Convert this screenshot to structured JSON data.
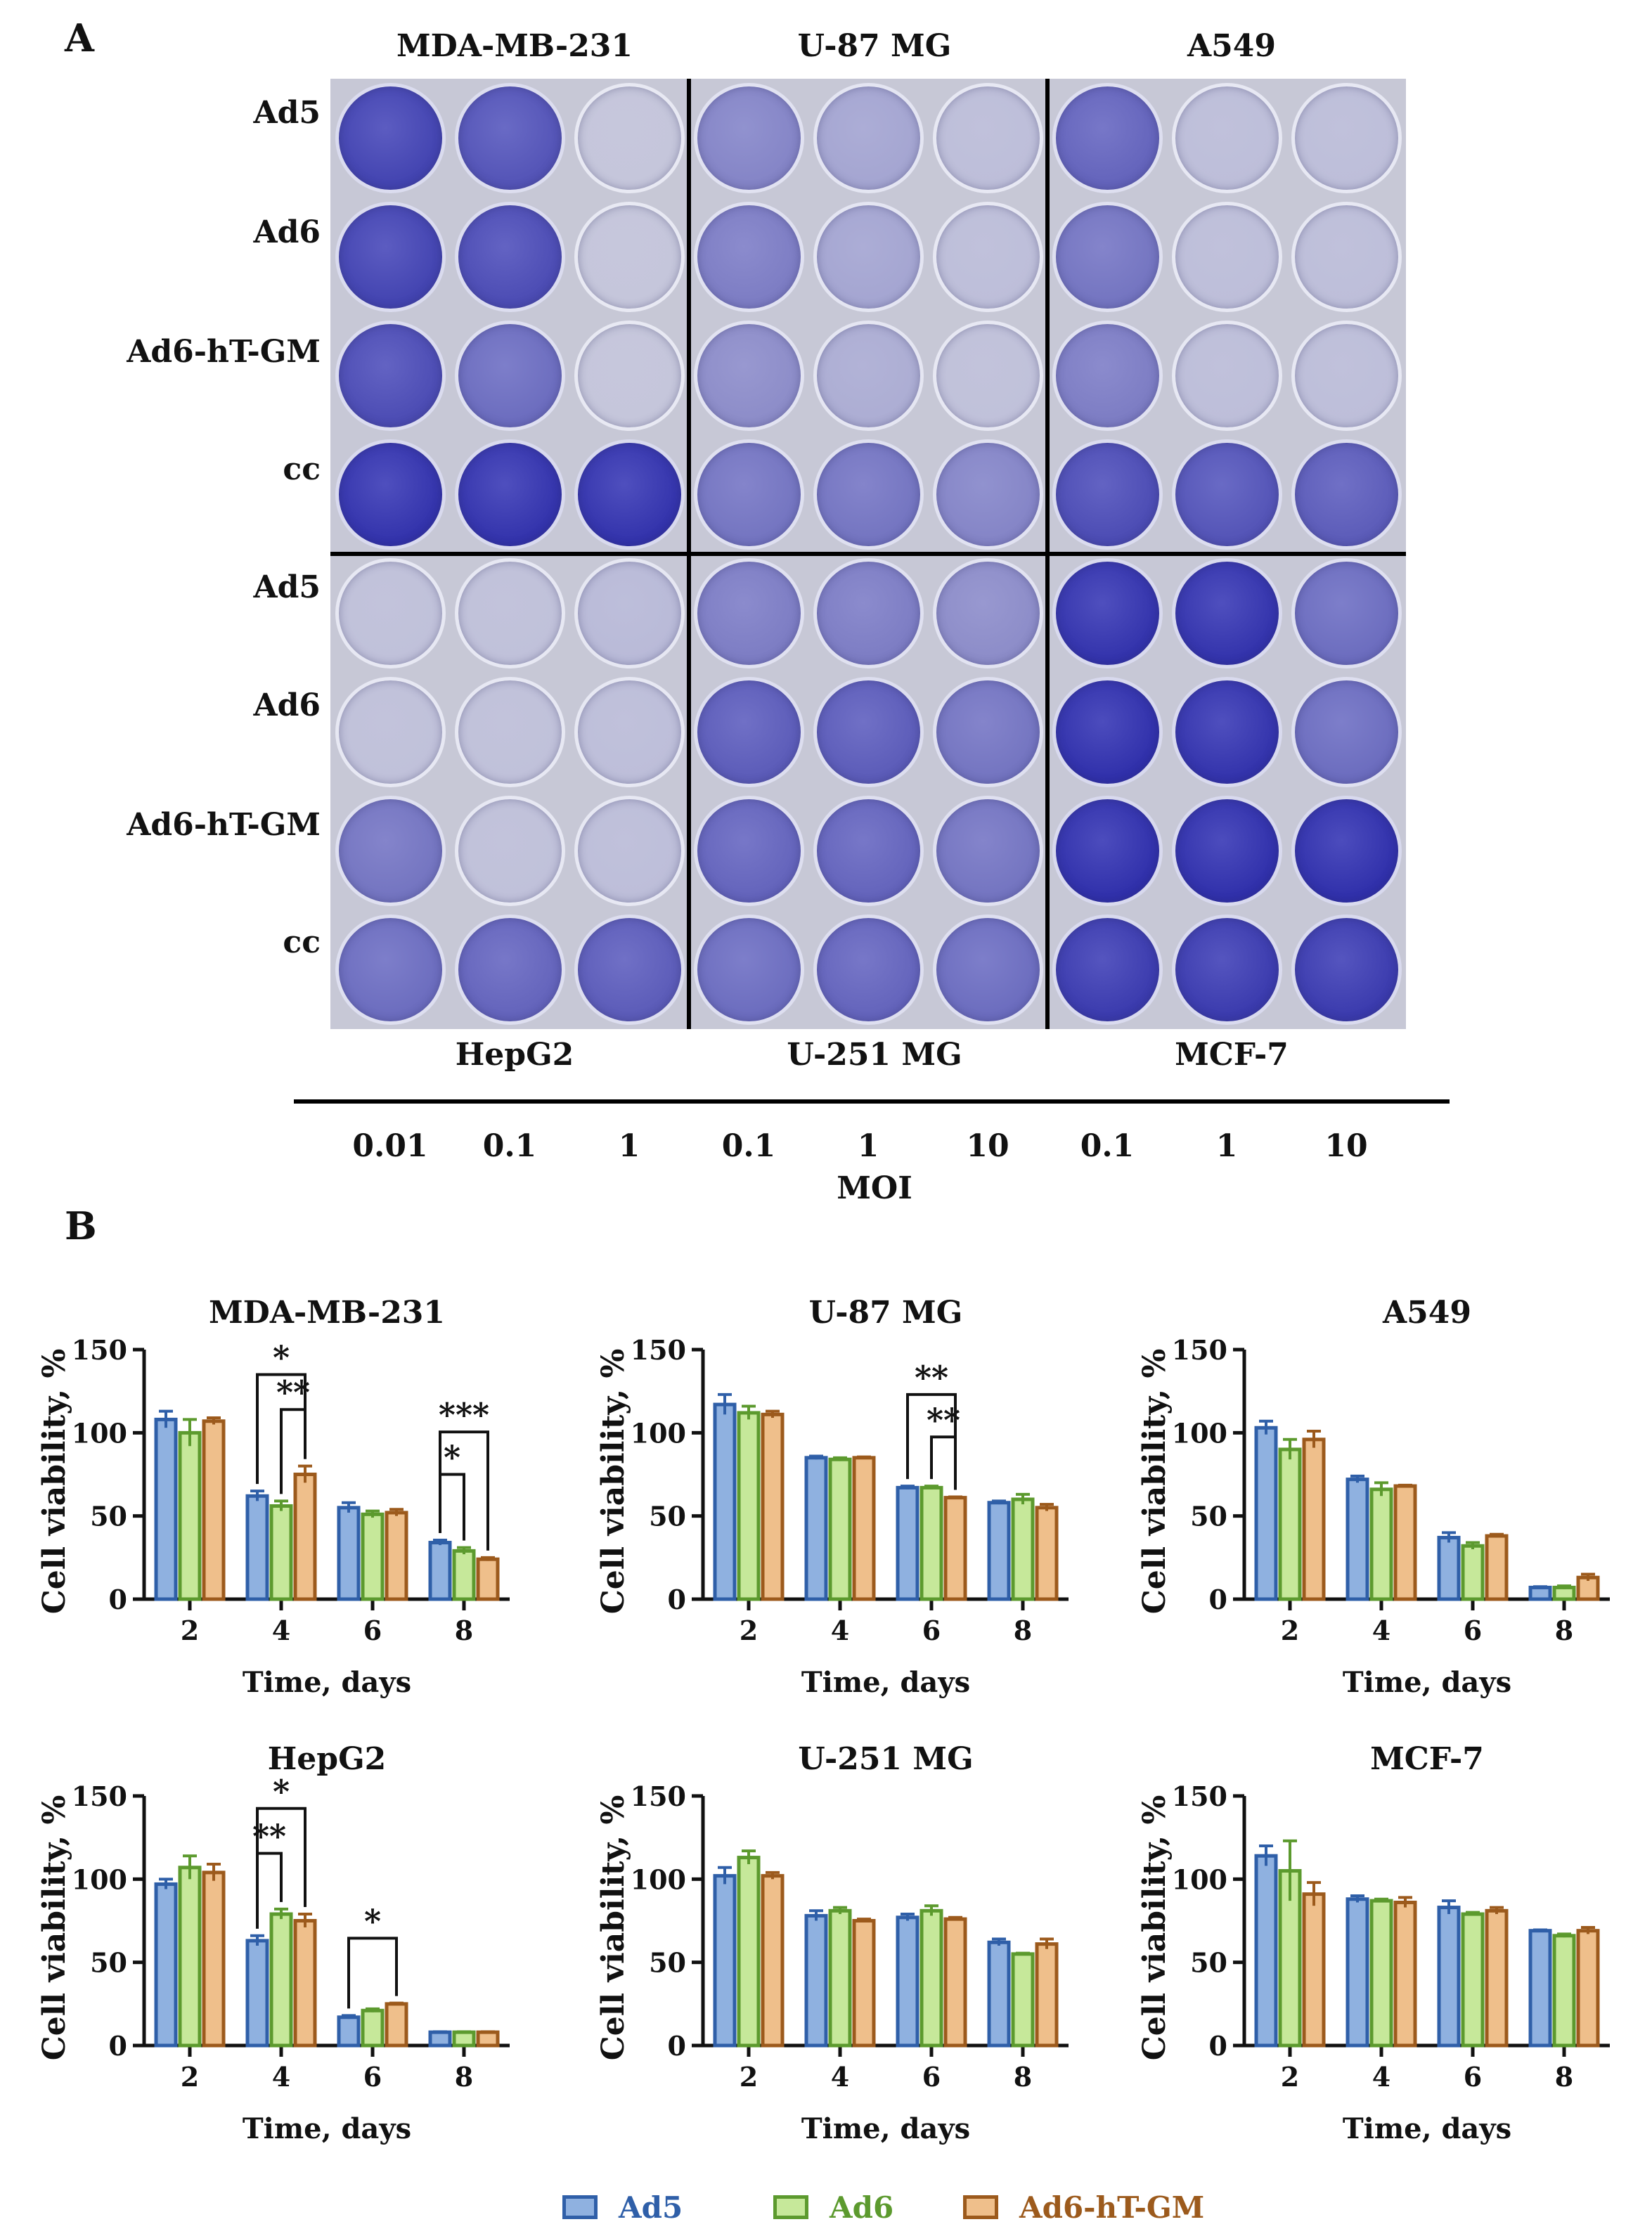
{
  "panel_a": {
    "letter": "A",
    "top_cell_lines": [
      "MDA-MB-231",
      "U-87 MG",
      "A549"
    ],
    "bottom_cell_lines": [
      "HepG2",
      "U-251 MG",
      "MCF-7"
    ],
    "row_labels": [
      "Ad5",
      "Ad6",
      "Ad6-hT-GM",
      "cc",
      "Ad5",
      "Ad6",
      "Ad6-hT-GM",
      "cc"
    ],
    "moi_ticks": [
      "0.01",
      "0.1",
      "1",
      "0.1",
      "1",
      "10",
      "0.1",
      "1",
      "10"
    ],
    "moi_axis_label": "MOI",
    "colors": {
      "stain_dark": "#2a2aa8",
      "stain_light": "#c9cadb",
      "stain_medium": "#6f6fc0"
    },
    "well_stain": [
      [
        0.85,
        0.75,
        0.05,
        0.45,
        0.25,
        0.1,
        0.65,
        0.1,
        0.1
      ],
      [
        0.85,
        0.8,
        0.05,
        0.5,
        0.25,
        0.1,
        0.55,
        0.1,
        0.1
      ],
      [
        0.8,
        0.6,
        0.05,
        0.4,
        0.2,
        0.08,
        0.5,
        0.1,
        0.1
      ],
      [
        0.95,
        0.95,
        0.95,
        0.55,
        0.55,
        0.45,
        0.8,
        0.75,
        0.7
      ],
      [
        0.08,
        0.08,
        0.12,
        0.5,
        0.5,
        0.4,
        0.95,
        0.95,
        0.6
      ],
      [
        0.08,
        0.08,
        0.1,
        0.7,
        0.7,
        0.55,
        0.97,
        0.95,
        0.6
      ],
      [
        0.55,
        0.08,
        0.1,
        0.65,
        0.65,
        0.55,
        0.97,
        0.97,
        0.97
      ],
      [
        0.6,
        0.65,
        0.7,
        0.6,
        0.65,
        0.6,
        0.9,
        0.9,
        0.9
      ]
    ]
  },
  "panel_b": {
    "letter": "B",
    "legend": [
      {
        "name": "Ad5",
        "fill": "#8fb1e0",
        "stroke": "#2f5fa8"
      },
      {
        "name": "Ad6",
        "fill": "#c6e89a",
        "stroke": "#5c9a2e"
      },
      {
        "name": "Ad6-hT-GM",
        "fill": "#efbf8b",
        "stroke": "#9c5a1c"
      }
    ]
  },
  "chart_data": [
    {
      "type": "bar",
      "title": "MDA-MB-231",
      "xlabel": "Time, days",
      "ylabel": "Cell viability, %",
      "categories": [
        "2",
        "4",
        "6",
        "8"
      ],
      "ylim": [
        0,
        150
      ],
      "yticks": [
        "0",
        "50",
        "100",
        "150"
      ],
      "series": [
        {
          "name": "Ad5",
          "values": [
            108,
            62,
            55,
            34
          ],
          "errors": [
            5,
            3,
            3,
            1.5
          ]
        },
        {
          "name": "Ad6",
          "values": [
            100,
            56,
            51,
            29
          ],
          "errors": [
            8,
            3,
            2,
            2
          ]
        },
        {
          "name": "Ad6-hT-GM",
          "values": [
            107,
            75,
            52,
            24
          ],
          "errors": [
            2,
            5,
            2,
            1
          ]
        }
      ],
      "annotations": [
        {
          "label": "*",
          "group": 1,
          "from": 0,
          "to": 2,
          "level": 0.9
        },
        {
          "label": "**",
          "group": 1,
          "from": 1,
          "to": 2,
          "level": 0.76
        },
        {
          "label": "***",
          "group": 3,
          "from": 0,
          "to": 2,
          "level": 0.67
        },
        {
          "label": "*",
          "group": 3,
          "from": 0,
          "to": 1,
          "level": 0.5
        }
      ]
    },
    {
      "type": "bar",
      "title": "U-87 MG",
      "xlabel": "Time, days",
      "ylabel": "Cell viability, %",
      "categories": [
        "2",
        "4",
        "6",
        "8"
      ],
      "ylim": [
        0,
        150
      ],
      "yticks": [
        "0",
        "50",
        "100",
        "150"
      ],
      "series": [
        {
          "name": "Ad5",
          "values": [
            117,
            85,
            67,
            58
          ],
          "errors": [
            6,
            1,
            1,
            1
          ]
        },
        {
          "name": "Ad6",
          "values": [
            112,
            84,
            67,
            60
          ],
          "errors": [
            4,
            1,
            1,
            3
          ]
        },
        {
          "name": "Ad6-hT-GM",
          "values": [
            111,
            85,
            61,
            55
          ],
          "errors": [
            2,
            0.5,
            0.5,
            2
          ]
        }
      ],
      "annotations": [
        {
          "label": "**",
          "group": 2,
          "from": 0,
          "to": 2,
          "level": 0.82
        },
        {
          "label": "**",
          "group": 2,
          "from": 1,
          "to": 2,
          "level": 0.65
        }
      ]
    },
    {
      "type": "bar",
      "title": "A549",
      "xlabel": "Time, days",
      "ylabel": "Cell viability, %",
      "categories": [
        "2",
        "4",
        "6",
        "8"
      ],
      "ylim": [
        0,
        150
      ],
      "yticks": [
        "0",
        "50",
        "100",
        "150"
      ],
      "series": [
        {
          "name": "Ad5",
          "values": [
            103,
            72,
            37,
            7
          ],
          "errors": [
            4,
            2,
            3,
            0.5
          ]
        },
        {
          "name": "Ad6",
          "values": [
            90,
            66,
            32,
            7
          ],
          "errors": [
            6,
            4,
            2,
            1
          ]
        },
        {
          "name": "Ad6-hT-GM",
          "values": [
            96,
            68,
            38,
            13
          ],
          "errors": [
            5,
            0.5,
            1,
            2
          ]
        }
      ],
      "annotations": []
    },
    {
      "type": "bar",
      "title": "HepG2",
      "xlabel": "Time, days",
      "ylabel": "Cell viability, %",
      "categories": [
        "2",
        "4",
        "6",
        "8"
      ],
      "ylim": [
        0,
        150
      ],
      "yticks": [
        "0",
        "50",
        "100",
        "150"
      ],
      "series": [
        {
          "name": "Ad5",
          "values": [
            97,
            63,
            17,
            8
          ],
          "errors": [
            3,
            3,
            1,
            0.3
          ]
        },
        {
          "name": "Ad6",
          "values": [
            107,
            79,
            21,
            8
          ],
          "errors": [
            7,
            3,
            1,
            0.3
          ]
        },
        {
          "name": "Ad6-hT-GM",
          "values": [
            104,
            75,
            25,
            8
          ],
          "errors": [
            5,
            4,
            0.5,
            0.3
          ]
        }
      ],
      "annotations": [
        {
          "label": "*",
          "group": 1,
          "from": 0,
          "to": 2,
          "level": 0.95
        },
        {
          "label": "**",
          "group": 1,
          "from": 0,
          "to": 1,
          "level": 0.77
        },
        {
          "label": "*",
          "group": 2,
          "from": 0,
          "to": 2,
          "level": 0.43
        }
      ]
    },
    {
      "type": "bar",
      "title": "U-251 MG",
      "xlabel": "Time, days",
      "ylabel": "Cell viability, %",
      "categories": [
        "2",
        "4",
        "6",
        "8"
      ],
      "ylim": [
        0,
        150
      ],
      "yticks": [
        "0",
        "50",
        "100",
        "150"
      ],
      "series": [
        {
          "name": "Ad5",
          "values": [
            102,
            78,
            77,
            62
          ],
          "errors": [
            5,
            3,
            2,
            2
          ]
        },
        {
          "name": "Ad6",
          "values": [
            113,
            81,
            81,
            55
          ],
          "errors": [
            4,
            2,
            3,
            0.5
          ]
        },
        {
          "name": "Ad6-hT-GM",
          "values": [
            102,
            75,
            76,
            61
          ],
          "errors": [
            2,
            1,
            1,
            3
          ]
        }
      ],
      "annotations": []
    },
    {
      "type": "bar",
      "title": "MCF-7",
      "xlabel": "Time, days",
      "ylabel": "Cell viability, %",
      "categories": [
        "2",
        "4",
        "6",
        "8"
      ],
      "ylim": [
        0,
        150
      ],
      "yticks": [
        "0",
        "50",
        "100",
        "150"
      ],
      "series": [
        {
          "name": "Ad5",
          "values": [
            114,
            88,
            83,
            69
          ],
          "errors": [
            6,
            2,
            4,
            0.5
          ]
        },
        {
          "name": "Ad6",
          "values": [
            105,
            87,
            79,
            66
          ],
          "errors": [
            18,
            1,
            1,
            1
          ]
        },
        {
          "name": "Ad6-hT-GM",
          "values": [
            91,
            86,
            81,
            69
          ],
          "errors": [
            7,
            3,
            2,
            2
          ]
        }
      ],
      "annotations": []
    }
  ]
}
